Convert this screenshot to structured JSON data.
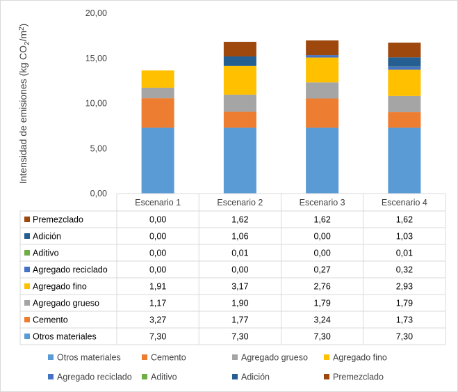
{
  "chart_data": {
    "type": "bar",
    "stacked": true,
    "categories": [
      "Escenario 1",
      "Escenario 2",
      "Escenario 3",
      "Escenario 4"
    ],
    "ylabel_parts": [
      "Intensidad de emisiones (kg CO",
      "2",
      "/m",
      "2",
      ")"
    ],
    "ylim": [
      0,
      20
    ],
    "yticks": [
      "0,00",
      "5,00",
      "10,00",
      "15,00",
      "20,00"
    ],
    "legend_position": "bottom",
    "series": [
      {
        "name": "Otros materiales",
        "color": "#5b9bd5",
        "values": [
          7.3,
          7.3,
          7.3,
          7.3
        ],
        "labels": [
          "7,30",
          "7,30",
          "7,30",
          "7,30"
        ]
      },
      {
        "name": "Cemento",
        "color": "#ed7d31",
        "values": [
          3.27,
          1.77,
          3.24,
          1.73
        ],
        "labels": [
          "3,27",
          "1,77",
          "3,24",
          "1,73"
        ]
      },
      {
        "name": "Agregado grueso",
        "color": "#a5a5a5",
        "values": [
          1.17,
          1.9,
          1.79,
          1.79
        ],
        "labels": [
          "1,17",
          "1,90",
          "1,79",
          "1,79"
        ]
      },
      {
        "name": "Agregado fino",
        "color": "#ffc000",
        "values": [
          1.91,
          3.17,
          2.76,
          2.93
        ],
        "labels": [
          "1,91",
          "3,17",
          "2,76",
          "2,93"
        ]
      },
      {
        "name": "Agregado reciclado",
        "color": "#4472c4",
        "values": [
          0.0,
          0.0,
          0.27,
          0.32
        ],
        "labels": [
          "0,00",
          "0,00",
          "0,27",
          "0,32"
        ]
      },
      {
        "name": "Aditivo",
        "color": "#70ad47",
        "values": [
          0.0,
          0.01,
          0.0,
          0.01
        ],
        "labels": [
          "0,00",
          "0,01",
          "0,00",
          "0,01"
        ]
      },
      {
        "name": "Adición",
        "color": "#255e91",
        "values": [
          0.0,
          1.06,
          0.0,
          1.03
        ],
        "labels": [
          "0,00",
          "1,06",
          "0,00",
          "1,03"
        ]
      },
      {
        "name": "Premezclado",
        "color": "#9e480e",
        "values": [
          0.0,
          1.62,
          1.62,
          1.62
        ],
        "labels": [
          "0,00",
          "1,62",
          "1,62",
          "1,62"
        ]
      }
    ]
  }
}
